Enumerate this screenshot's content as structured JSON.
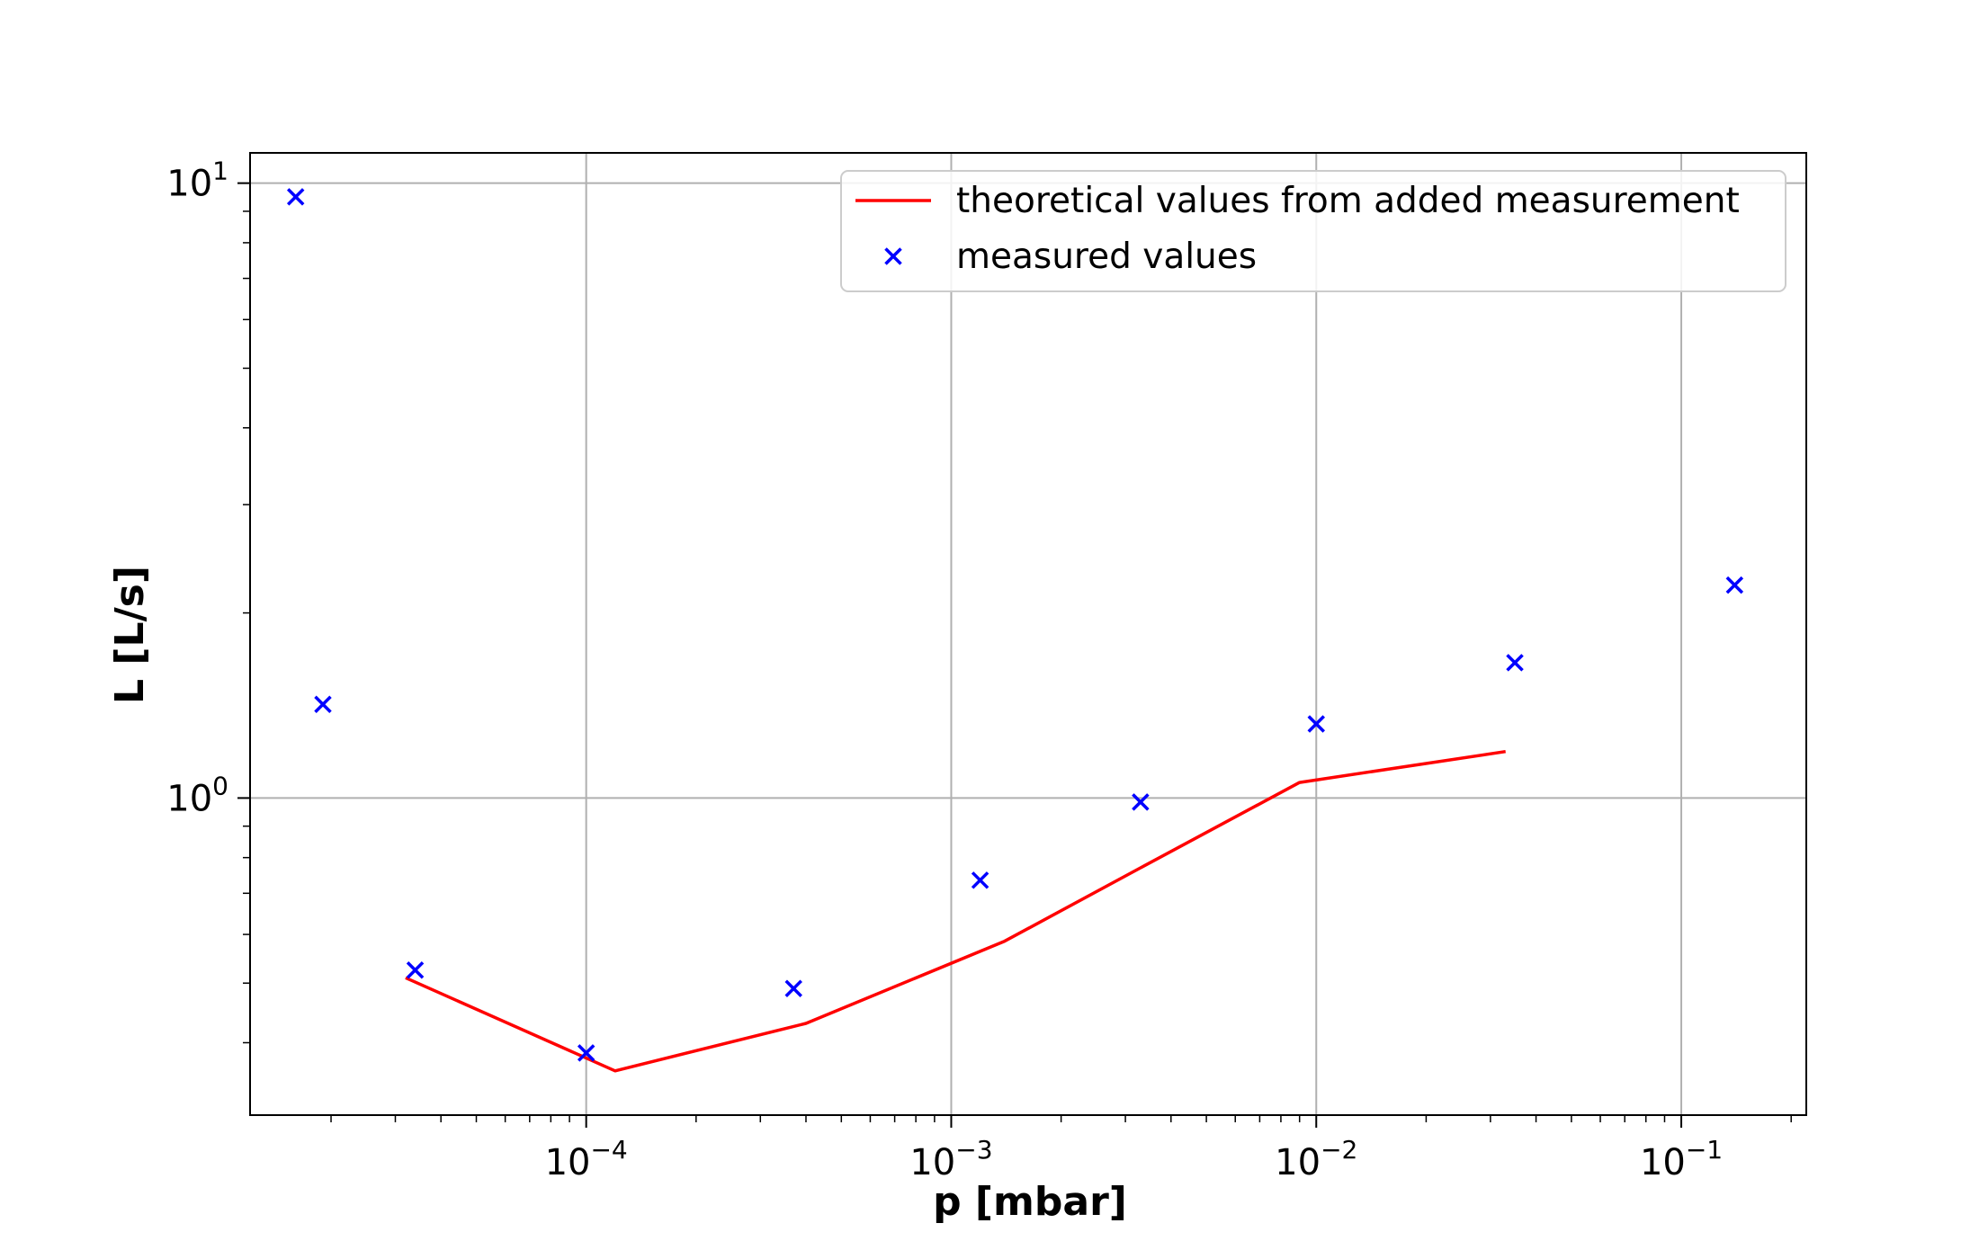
{
  "chart_data": {
    "type": "line",
    "title": "",
    "xlabel": "p [mbar]",
    "ylabel": "L  [L/s]",
    "xscale": "log",
    "yscale": "log",
    "xlim": [
      1.2e-05,
      0.22
    ],
    "ylim": [
      0.305,
      11.2
    ],
    "grid": true,
    "legend_position": "top-right",
    "x_ticks": [
      {
        "value": 0.0001,
        "base": "10",
        "exp": "−4"
      },
      {
        "value": 0.001,
        "base": "10",
        "exp": "−3"
      },
      {
        "value": 0.01,
        "base": "10",
        "exp": "−2"
      },
      {
        "value": 0.1,
        "base": "10",
        "exp": "−1"
      }
    ],
    "y_ticks": [
      {
        "value": 1,
        "base": "10",
        "exp": "0"
      },
      {
        "value": 10,
        "base": "10",
        "exp": "1"
      }
    ],
    "series": [
      {
        "name": "theoretical values from added measurement",
        "kind": "line",
        "color": "#ff0000",
        "x": [
          3.2e-05,
          0.00012,
          0.0004,
          0.0014,
          0.0033,
          0.009,
          0.033
        ],
        "y": [
          0.51,
          0.36,
          0.43,
          0.585,
          0.77,
          1.06,
          1.19
        ]
      },
      {
        "name": "measured values",
        "kind": "scatter",
        "marker": "x",
        "color": "#0000ff",
        "x": [
          1.6e-05,
          1.9e-05,
          3.4e-05,
          0.0001,
          0.00037,
          0.0012,
          0.0033,
          0.01,
          0.035,
          0.14
        ],
        "y": [
          9.5,
          1.42,
          0.525,
          0.385,
          0.49,
          0.735,
          0.985,
          1.32,
          1.66,
          2.22
        ]
      }
    ]
  }
}
